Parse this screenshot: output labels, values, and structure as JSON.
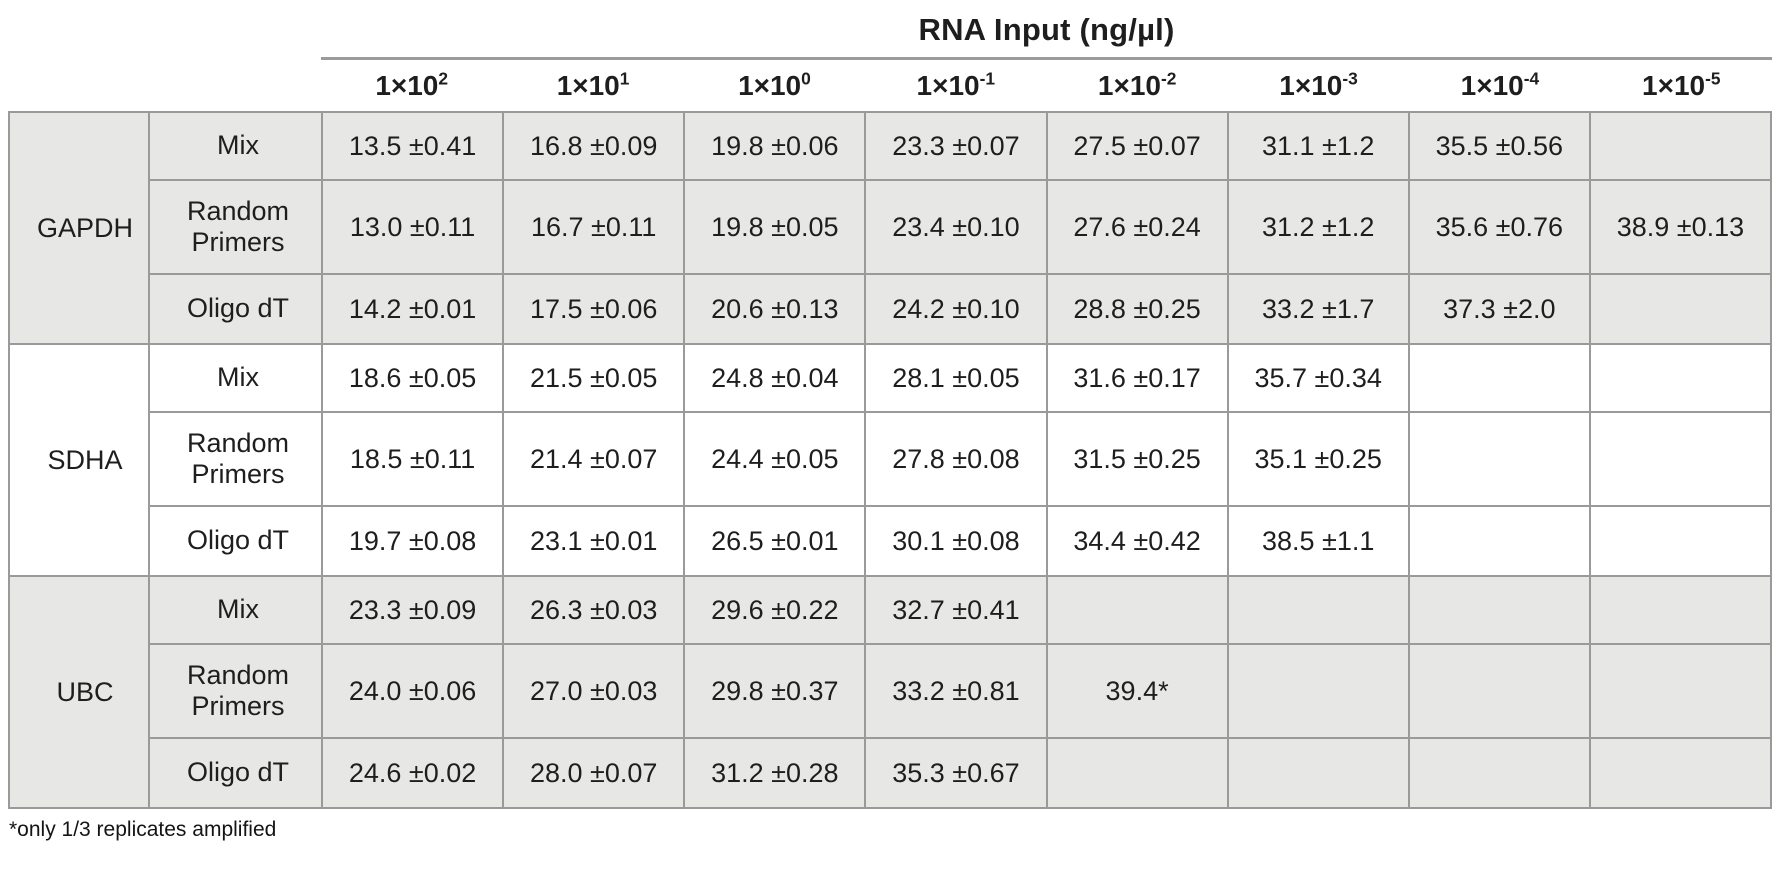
{
  "colors": {
    "shaded_row_bg": "#e7e7e6",
    "grid_border": "#9a9a9a",
    "outer_border": "#7f7f7f",
    "text": "#1e1e1e"
  },
  "chart_data": {
    "type": "table",
    "title": "RNA Input (ng/µl)",
    "column_headers": [
      {
        "base": "1×10",
        "exp": "2"
      },
      {
        "base": "1×10",
        "exp": "1"
      },
      {
        "base": "1×10",
        "exp": "0"
      },
      {
        "base": "1×10",
        "exp": "-1"
      },
      {
        "base": "1×10",
        "exp": "-2"
      },
      {
        "base": "1×10",
        "exp": "-3"
      },
      {
        "base": "1×10",
        "exp": "-4"
      },
      {
        "base": "1×10",
        "exp": "-5"
      }
    ],
    "row_groups": [
      {
        "gene": "GAPDH",
        "rows": [
          {
            "method": "Mix",
            "values": [
              "13.5 ±0.41",
              "16.8 ±0.09",
              "19.8 ±0.06",
              "23.3 ±0.07",
              "27.5 ±0.07",
              "31.1 ±1.2",
              "35.5 ±0.56",
              ""
            ]
          },
          {
            "method": "Random Primers",
            "values": [
              "13.0 ±0.11",
              "16.7 ±0.11",
              "19.8 ±0.05",
              "23.4 ±0.10",
              "27.6 ±0.24",
              "31.2 ±1.2",
              "35.6 ±0.76",
              "38.9 ±0.13"
            ]
          },
          {
            "method": "Oligo dT",
            "values": [
              "14.2 ±0.01",
              "17.5 ±0.06",
              "20.6 ±0.13",
              "24.2 ±0.10",
              "28.8 ±0.25",
              "33.2 ±1.7",
              "37.3 ±2.0",
              ""
            ]
          }
        ]
      },
      {
        "gene": "SDHA",
        "rows": [
          {
            "method": "Mix",
            "values": [
              "18.6 ±0.05",
              "21.5 ±0.05",
              "24.8 ±0.04",
              "28.1 ±0.05",
              "31.6 ±0.17",
              "35.7 ±0.34",
              "",
              ""
            ]
          },
          {
            "method": "Random Primers",
            "values": [
              "18.5 ±0.11",
              "21.4 ±0.07",
              "24.4 ±0.05",
              "27.8 ±0.08",
              "31.5 ±0.25",
              "35.1 ±0.25",
              "",
              ""
            ]
          },
          {
            "method": "Oligo dT",
            "values": [
              "19.7 ±0.08",
              "23.1 ±0.01",
              "26.5 ±0.01",
              "30.1 ±0.08",
              "34.4 ±0.42",
              "38.5 ±1.1",
              "",
              ""
            ]
          }
        ]
      },
      {
        "gene": "UBC",
        "rows": [
          {
            "method": "Mix",
            "values": [
              "23.3 ±0.09",
              "26.3 ±0.03",
              "29.6 ±0.22",
              "32.7 ±0.41",
              "",
              "",
              "",
              ""
            ]
          },
          {
            "method": "Random Primers",
            "values": [
              "24.0 ±0.06",
              "27.0 ±0.03",
              "29.8 ±0.37",
              "33.2 ±0.81",
              "39.4*",
              "",
              "",
              ""
            ]
          },
          {
            "method": "Oligo dT",
            "values": [
              "24.6 ±0.02",
              "28.0 ±0.07",
              "31.2 ±0.28",
              "35.3 ±0.67",
              "",
              "",
              "",
              ""
            ]
          }
        ]
      }
    ],
    "footnote": "*only 1/3 replicates amplified"
  }
}
